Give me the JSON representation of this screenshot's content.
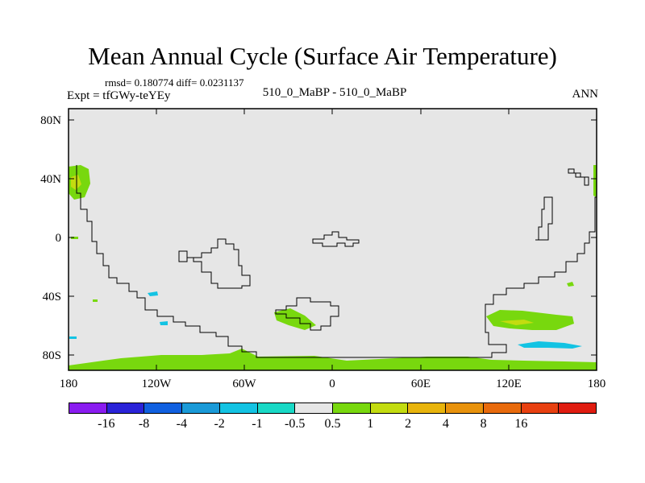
{
  "title": "Mean Annual Cycle (Surface Air Temperature)",
  "stats": "rmsd= 0.180774  diff= 0.0231137",
  "experiment": "Expt = tfGWy-teYEy",
  "comparison": "510_0_MaBP - 510_0_MaBP",
  "season": "ANN",
  "lat_ticks": [
    "80N",
    "40N",
    "0",
    "40S",
    "80S"
  ],
  "lon_ticks": [
    "180",
    "120W",
    "60W",
    "0",
    "60E",
    "120E",
    "180"
  ],
  "colorbar": {
    "colors": [
      "#8a1cf0",
      "#2a23d8",
      "#1060e0",
      "#1a9ad8",
      "#13c3e3",
      "#19d9c6",
      "#e6e6e6",
      "#78d80e",
      "#c3dc10",
      "#e8b40c",
      "#e8920c",
      "#e86a0c",
      "#e84010",
      "#e01c10"
    ],
    "labels": [
      "-16",
      "-8",
      "-4",
      "-2",
      "-1",
      "-0.5",
      "0.5",
      "1",
      "2",
      "4",
      "8",
      "16"
    ]
  },
  "colors": {
    "background_field": "#e6e6e6",
    "positive_anomaly": "#78d80e",
    "warm_anomaly": "#c3dc10",
    "cool_anomaly": "#13c3e3"
  }
}
